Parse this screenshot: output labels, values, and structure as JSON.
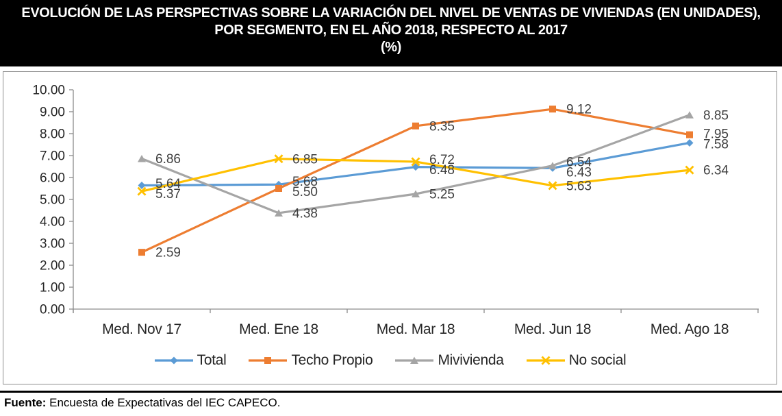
{
  "title": {
    "line1": "EVOLUCIÓN DE LAS PERSPECTIVAS SOBRE LA VARIACIÓN DEL NIVEL DE VENTAS DE VIVIENDAS (EN UNIDADES),",
    "line2": "POR SEGMENTO, EN EL AÑO 2018, RESPECTO AL 2017",
    "line3": "(%)"
  },
  "chart_data": {
    "type": "line",
    "categories": [
      "Med. Nov 17",
      "Med. Ene 18",
      "Med. Mar 18",
      "Med. Jun 18",
      "Med. Ago 18"
    ],
    "series": [
      {
        "name": "Total",
        "color": "#5B9BD5",
        "marker": "diamond",
        "values": [
          5.64,
          5.68,
          6.48,
          6.43,
          7.58
        ]
      },
      {
        "name": "Techo Propio",
        "color": "#ED7D31",
        "marker": "square",
        "values": [
          2.59,
          5.5,
          8.35,
          9.12,
          7.95
        ]
      },
      {
        "name": "Mivivienda",
        "color": "#A5A5A5",
        "marker": "triangle",
        "values": [
          6.86,
          4.38,
          5.25,
          6.54,
          8.85
        ]
      },
      {
        "name": "No social",
        "color": "#FFC000",
        "marker": "x",
        "values": [
          5.37,
          6.85,
          6.72,
          5.63,
          6.34
        ]
      }
    ],
    "ylim": [
      0,
      10
    ],
    "ytick_step": 1,
    "ytick_labels": [
      "0.00",
      "1.00",
      "2.00",
      "3.00",
      "4.00",
      "5.00",
      "6.00",
      "7.00",
      "8.00",
      "9.00",
      "10.00"
    ],
    "value_decimals": 2,
    "grid": false,
    "data_labels": true,
    "legend_position": "bottom",
    "axis_color": "#8C8C8C",
    "tick_text_color": "#262626",
    "data_label_color": "#3F3F3F"
  },
  "footer": {
    "source_label": "Fuente:",
    "source_text": "Encuesta de Expectativas del IEC CAPECO."
  }
}
